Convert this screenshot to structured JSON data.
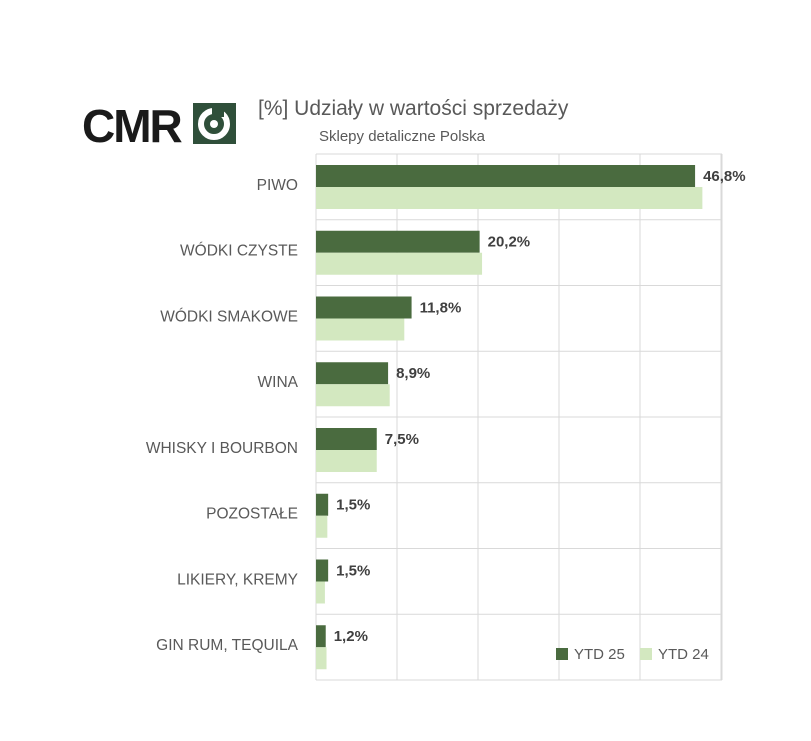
{
  "logo": {
    "text": "CMR"
  },
  "colors": {
    "ytd25": "#4a6b3f",
    "ytd24": "#d3e8c0",
    "grid": "#d9d9d9",
    "text": "#595959",
    "label": "#404040"
  },
  "chart_data": {
    "type": "bar",
    "orientation": "horizontal",
    "title": "[%] Udziały w wartości sprzedaży",
    "subtitle": "Sklepy detaliczne Polska",
    "categories": [
      "PIWO",
      "WÓDKI CZYSTE",
      "WÓDKI SMAKOWE",
      "WINA",
      "WHISKY I BOURBON",
      "POZOSTAŁE",
      "LIKIERY, KREMY",
      "GIN RUM, TEQUILA"
    ],
    "series": [
      {
        "name": "YTD 25",
        "values": [
          46.8,
          20.2,
          11.8,
          8.9,
          7.5,
          1.5,
          1.5,
          1.2
        ],
        "data_labels": [
          "46,8%",
          "20,2%",
          "11,8%",
          "8,9%",
          "7,5%",
          "1,5%",
          "1,5%",
          "1,2%"
        ]
      },
      {
        "name": "YTD 24",
        "values": [
          47.7,
          20.5,
          10.9,
          9.1,
          7.5,
          1.4,
          1.1,
          1.3
        ]
      }
    ],
    "xlim": [
      0,
      50
    ],
    "grid": true,
    "legend_position": "bottom-right"
  }
}
